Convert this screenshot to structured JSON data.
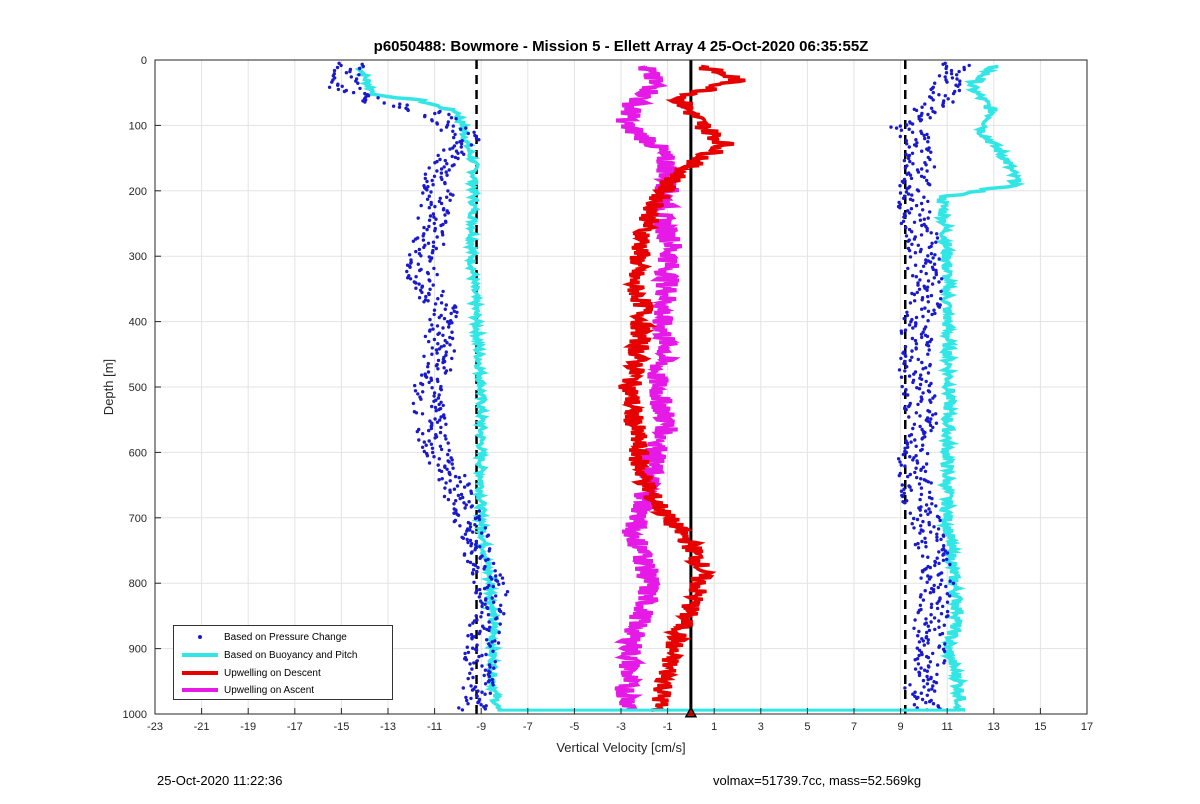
{
  "chart_data": {
    "type": "scatter",
    "title": "p6050488: Bowmore - Mission 5 - Ellett Array 4 25-Oct-2020 06:35:55Z",
    "xlabel": "Vertical Velocity [cm/s]",
    "ylabel": "Depth [m]",
    "xlim": [
      -23,
      17
    ],
    "ylim": [
      0,
      1000
    ],
    "y_reversed": true,
    "grid": true,
    "xticks": [
      -23,
      -21,
      -19,
      -17,
      -15,
      -13,
      -11,
      -9,
      -7,
      -5,
      -3,
      -1,
      1,
      3,
      5,
      7,
      9,
      11,
      13,
      15,
      17
    ],
    "yticks": [
      0,
      100,
      200,
      300,
      400,
      500,
      600,
      700,
      800,
      900,
      1000
    ],
    "reference_lines": [
      {
        "x": -9.2,
        "style": "dashed",
        "color": "#000000"
      },
      {
        "x": 9.2,
        "style": "dashed",
        "color": "#000000"
      },
      {
        "x": 0,
        "style": "solid",
        "color": "#000000"
      }
    ],
    "legend_position": "bottom-left",
    "series": [
      {
        "name": "Based on Pressure Change",
        "kind": "points",
        "color": "#1a1acc",
        "descent_profile": {
          "depth": [
            5,
            20,
            40,
            60,
            80,
            100,
            130,
            160,
            200,
            240,
            280,
            320,
            350,
            380,
            420,
            460,
            500,
            540,
            580,
            620,
            660,
            700,
            740,
            780,
            820,
            860,
            900,
            940,
            980,
            995
          ],
          "velocity": [
            -14.5,
            -14.8,
            -15.0,
            -14.0,
            -11.0,
            -10.2,
            -9.6,
            -10.8,
            -10.8,
            -11.0,
            -11.3,
            -11.6,
            -11.4,
            -10.5,
            -10.8,
            -10.8,
            -11.3,
            -11.3,
            -11.0,
            -10.6,
            -10.0,
            -9.5,
            -9.3,
            -8.8,
            -8.5,
            -8.8,
            -9.0,
            -9.1,
            -9.3,
            -9.4
          ]
        },
        "ascent_profile": {
          "depth": [
            5,
            30,
            60,
            100,
            130,
            160,
            200,
            240,
            280,
            320,
            360,
            400,
            440,
            480,
            520,
            560,
            600,
            640,
            680,
            720,
            760,
            800,
            840,
            880,
            920,
            960,
            995
          ],
          "velocity": [
            11.5,
            11.2,
            10.8,
            9.2,
            9.8,
            9.8,
            9.5,
            9.6,
            10.0,
            10.0,
            10.2,
            9.7,
            9.6,
            9.6,
            9.8,
            10.0,
            9.6,
            9.6,
            9.8,
            10.2,
            10.4,
            10.6,
            10.4,
            10.2,
            10.2,
            9.8,
            10.2
          ]
        }
      },
      {
        "name": "Based on Buoyancy and Pitch",
        "kind": "line",
        "color": "#33e6e6",
        "descent_profile": {
          "depth": [
            10,
            40,
            55,
            60,
            80,
            100,
            130,
            160,
            200,
            300,
            400,
            500,
            600,
            700,
            760,
            800,
            850,
            900,
            950,
            995
          ],
          "velocity": [
            -14.2,
            -13.8,
            -13.5,
            -11.8,
            -10.0,
            -9.8,
            -9.6,
            -9.3,
            -9.3,
            -9.4,
            -9.2,
            -9.0,
            -9.0,
            -9.0,
            -8.8,
            -8.6,
            -8.5,
            -8.5,
            -8.5,
            -8.3
          ]
        },
        "ascent_profile": {
          "depth": [
            10,
            40,
            80,
            110,
            150,
            190,
            210,
            300,
            400,
            500,
            600,
            700,
            800,
            850,
            900,
            950,
            995
          ],
          "velocity": [
            13.0,
            12.0,
            13.0,
            12.5,
            13.5,
            14.0,
            10.8,
            11.0,
            11.0,
            11.1,
            11.0,
            11.0,
            11.3,
            11.5,
            11.0,
            11.5,
            11.6
          ]
        }
      },
      {
        "name": "Upwelling on Descent",
        "kind": "line",
        "color": "#e60000",
        "depth": [
          10,
          30,
          60,
          100,
          130,
          160,
          190,
          220,
          260,
          300,
          340,
          380,
          420,
          460,
          500,
          540,
          580,
          620,
          660,
          700,
          740,
          780,
          820,
          860,
          900,
          940,
          980,
          995
        ],
        "velocity": [
          0.5,
          2.0,
          -0.5,
          0.5,
          1.5,
          0.0,
          -1.0,
          -1.5,
          -2.0,
          -2.2,
          -2.5,
          -2.0,
          -2.2,
          -2.3,
          -2.6,
          -2.5,
          -2.3,
          -2.2,
          -1.8,
          -1.0,
          0.0,
          0.5,
          0.2,
          -0.3,
          -0.8,
          -1.0,
          -1.3,
          -1.5
        ]
      },
      {
        "name": "Upwelling on Ascent",
        "kind": "line",
        "color": "#e61ae6",
        "depth": [
          10,
          40,
          70,
          100,
          130,
          160,
          200,
          240,
          280,
          320,
          360,
          400,
          440,
          480,
          520,
          560,
          600,
          640,
          680,
          720,
          760,
          800,
          840,
          880,
          920,
          960,
          995
        ],
        "velocity": [
          -2.0,
          -1.5,
          -2.5,
          -2.8,
          -1.5,
          -1.0,
          -1.0,
          -1.3,
          -0.8,
          -1.0,
          -1.0,
          -1.3,
          -1.0,
          -1.5,
          -1.3,
          -1.0,
          -1.5,
          -1.8,
          -2.0,
          -2.5,
          -2.0,
          -1.8,
          -2.0,
          -2.5,
          -2.6,
          -2.8,
          -2.5
        ]
      }
    ]
  },
  "footer": {
    "timestamp": "25-Oct-2020 11:22:36",
    "summary": "volmax=51739.7cc, mass=52.569kg"
  }
}
